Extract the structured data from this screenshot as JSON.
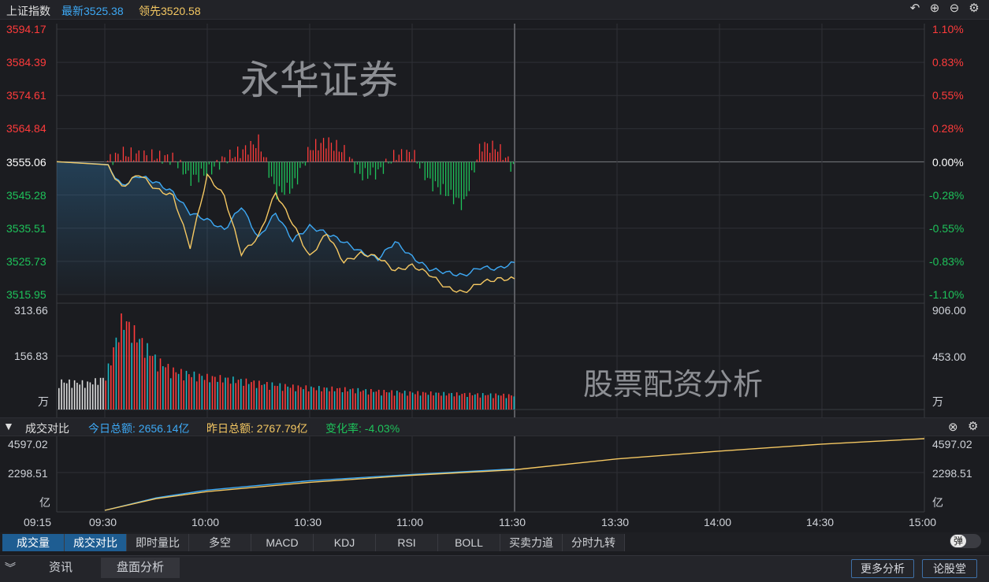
{
  "header": {
    "index_name": "上证指数",
    "latest": "最新3525.38",
    "lead": "领先3520.58"
  },
  "controls": {
    "back": "back-icon",
    "zoom_in": "plus-circle-icon",
    "zoom_out": "minus-circle-icon",
    "settings": "gear-icon"
  },
  "colors": {
    "up": "#ff3b3b",
    "down": "#1ec25a",
    "price": "#3da9f5",
    "lead": "#f5c862",
    "neutral": "#ffffff"
  },
  "watermarks": {
    "top": "永华证券",
    "mid": "股票配资分析"
  },
  "chart_data": [
    {
      "type": "line",
      "panel": "price",
      "y_ticks_left": [
        "3594.17",
        "3584.39",
        "3574.61",
        "3564.84",
        "3555.06",
        "3545.28",
        "3535.51",
        "3525.73",
        "3515.95"
      ],
      "y_ticks_right": [
        "1.10%",
        "0.83%",
        "0.55%",
        "0.28%",
        "0.00%",
        "-0.28%",
        "-0.55%",
        "-0.83%",
        "-1.10%"
      ],
      "ylim": [
        3515.95,
        3594.17
      ],
      "base_value": 3555.06,
      "x_minutes": [
        0,
        5,
        10,
        15,
        20,
        25,
        30,
        35,
        40,
        45,
        50,
        55,
        60,
        65,
        70,
        75,
        80,
        85,
        90,
        95,
        100,
        105,
        110,
        115,
        120
      ],
      "series": [
        {
          "values": [
            3555.1,
            3548.0,
            3551.0,
            3549.0,
            3546.0,
            3540.0,
            3538.0,
            3535.0,
            3542.0,
            3532.5,
            3540.0,
            3532.0,
            3536.0,
            3534.0,
            3531.5,
            3528.5,
            3526.5,
            3531.5,
            3527.0,
            3523.5,
            3522.5,
            3521.5,
            3524.0,
            3523.5,
            3525.4
          ]
        },
        {
          "values": [
            3555.1,
            3547.5,
            3551.5,
            3547.0,
            3545.0,
            3530.0,
            3551.0,
            3545.0,
            3528.0,
            3533.0,
            3546.0,
            3537.0,
            3527.0,
            3534.0,
            3525.5,
            3528.0,
            3527.0,
            3523.0,
            3524.5,
            3522.0,
            3518.0,
            3516.5,
            3519.5,
            3520.5,
            3520.6
          ]
        }
      ]
    },
    {
      "type": "bar",
      "panel": "volume",
      "y_ticks_left": [
        "313.66",
        "156.83",
        "万"
      ],
      "y_ticks_right": [
        "906.00",
        "453.00",
        "万"
      ],
      "ylim": [
        0,
        313.66
      ],
      "x_minutes": [
        -15,
        -10,
        -5,
        0,
        5,
        10,
        15,
        20,
        25,
        30,
        35,
        40,
        45,
        50,
        55,
        60,
        65,
        70,
        75,
        80,
        85,
        90,
        95,
        100,
        105,
        110,
        115,
        120
      ],
      "values": [
        80,
        78,
        75,
        90,
        260,
        200,
        140,
        110,
        100,
        92,
        88,
        82,
        75,
        70,
        65,
        62,
        60,
        58,
        55,
        52,
        50,
        48,
        47,
        45,
        44,
        43,
        42,
        40
      ]
    },
    {
      "type": "bar",
      "panel": "diff",
      "x_minutes": [
        0,
        5,
        10,
        15,
        20,
        25,
        30,
        35,
        40,
        45,
        50,
        55,
        60,
        65,
        70,
        75,
        80,
        85,
        90,
        95,
        100,
        105,
        110,
        115,
        120
      ],
      "values": [
        0,
        5,
        4,
        3,
        2,
        -10,
        -6,
        2,
        6,
        12,
        -18,
        -15,
        8,
        12,
        6,
        -8,
        -6,
        4,
        5,
        -12,
        -18,
        -25,
        10,
        8,
        -5
      ]
    },
    {
      "type": "line",
      "panel": "turnover",
      "title": "成交对比",
      "y_ticks_left": [
        "4597.02",
        "2298.51",
        "亿"
      ],
      "y_ticks_right": [
        "4597.02",
        "2298.51",
        "亿"
      ],
      "ylim": [
        0,
        4597.02
      ],
      "series": [
        {
          "name": "今日总额",
          "x_minutes": [
            0,
            15,
            30,
            60,
            90,
            120
          ],
          "values": [
            0,
            800,
            1300,
            1900,
            2300,
            2656.14
          ]
        },
        {
          "name": "昨日总额",
          "x_minutes": [
            0,
            15,
            30,
            60,
            90,
            120,
            150,
            180,
            210,
            240
          ],
          "values": [
            0,
            750,
            1200,
            1800,
            2250,
            2600,
            3300,
            3800,
            4250,
            4597.02
          ]
        }
      ]
    }
  ],
  "volume_panel": {
    "title": "成交对比",
    "today_total": "今日总额: 2656.14亿",
    "yesterday_total": "昨日总额: 2767.79亿",
    "change_rate": "变化率: -4.03%"
  },
  "x_axis": {
    "ticks": [
      "09:15",
      "09:30",
      "10:00",
      "10:30",
      "11:00",
      "11:30",
      "13:30",
      "14:00",
      "14:30",
      "15:00"
    ]
  },
  "indicator_tabs": [
    "成交量",
    "成交对比",
    "即时量比",
    "多空",
    "MACD",
    "KDJ",
    "RSI",
    "BOLL",
    "买卖力道",
    "分时九转"
  ],
  "toggle_label": "弹",
  "bottom_tabs": [
    "资讯",
    "盘面分析"
  ],
  "bottom_buttons": [
    "更多分析",
    "论股堂"
  ]
}
